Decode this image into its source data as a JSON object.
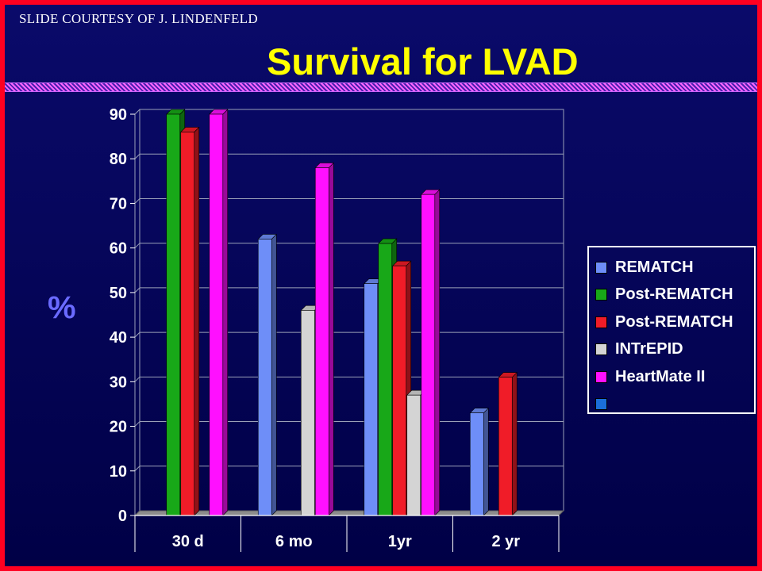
{
  "header": {
    "courtesy": "SLIDE COURTESY OF J. LINDENFELD",
    "title": "Survival for LVAD"
  },
  "chart_data": {
    "type": "bar",
    "title": "Survival for LVAD",
    "xlabel": "",
    "ylabel": "%",
    "ylim": [
      0,
      90
    ],
    "yticks": [
      0,
      10,
      20,
      30,
      40,
      50,
      60,
      70,
      80,
      90
    ],
    "grid": true,
    "legend_position": "right",
    "categories": [
      "30 d",
      "6 mo",
      "1yr",
      "2 yr"
    ],
    "series": [
      {
        "name": "REMATCH",
        "color": "#6e8ef8",
        "values": [
          null,
          62,
          52,
          23
        ]
      },
      {
        "name": "Post-REMATCH",
        "color": "#18a818",
        "values": [
          90,
          null,
          61,
          null
        ]
      },
      {
        "name": "Post-REMATCH",
        "color": "#f01c28",
        "values": [
          86,
          null,
          56,
          31
        ]
      },
      {
        "name": "INTrEPID",
        "color": "#d4d4d4",
        "values": [
          null,
          46,
          27,
          null
        ]
      },
      {
        "name": "HeartMate II",
        "color": "#ff10ff",
        "values": [
          90,
          78,
          72,
          null
        ]
      },
      {
        "name": "",
        "color": "#1a6ed8",
        "values": [
          null,
          null,
          null,
          null
        ]
      }
    ]
  }
}
